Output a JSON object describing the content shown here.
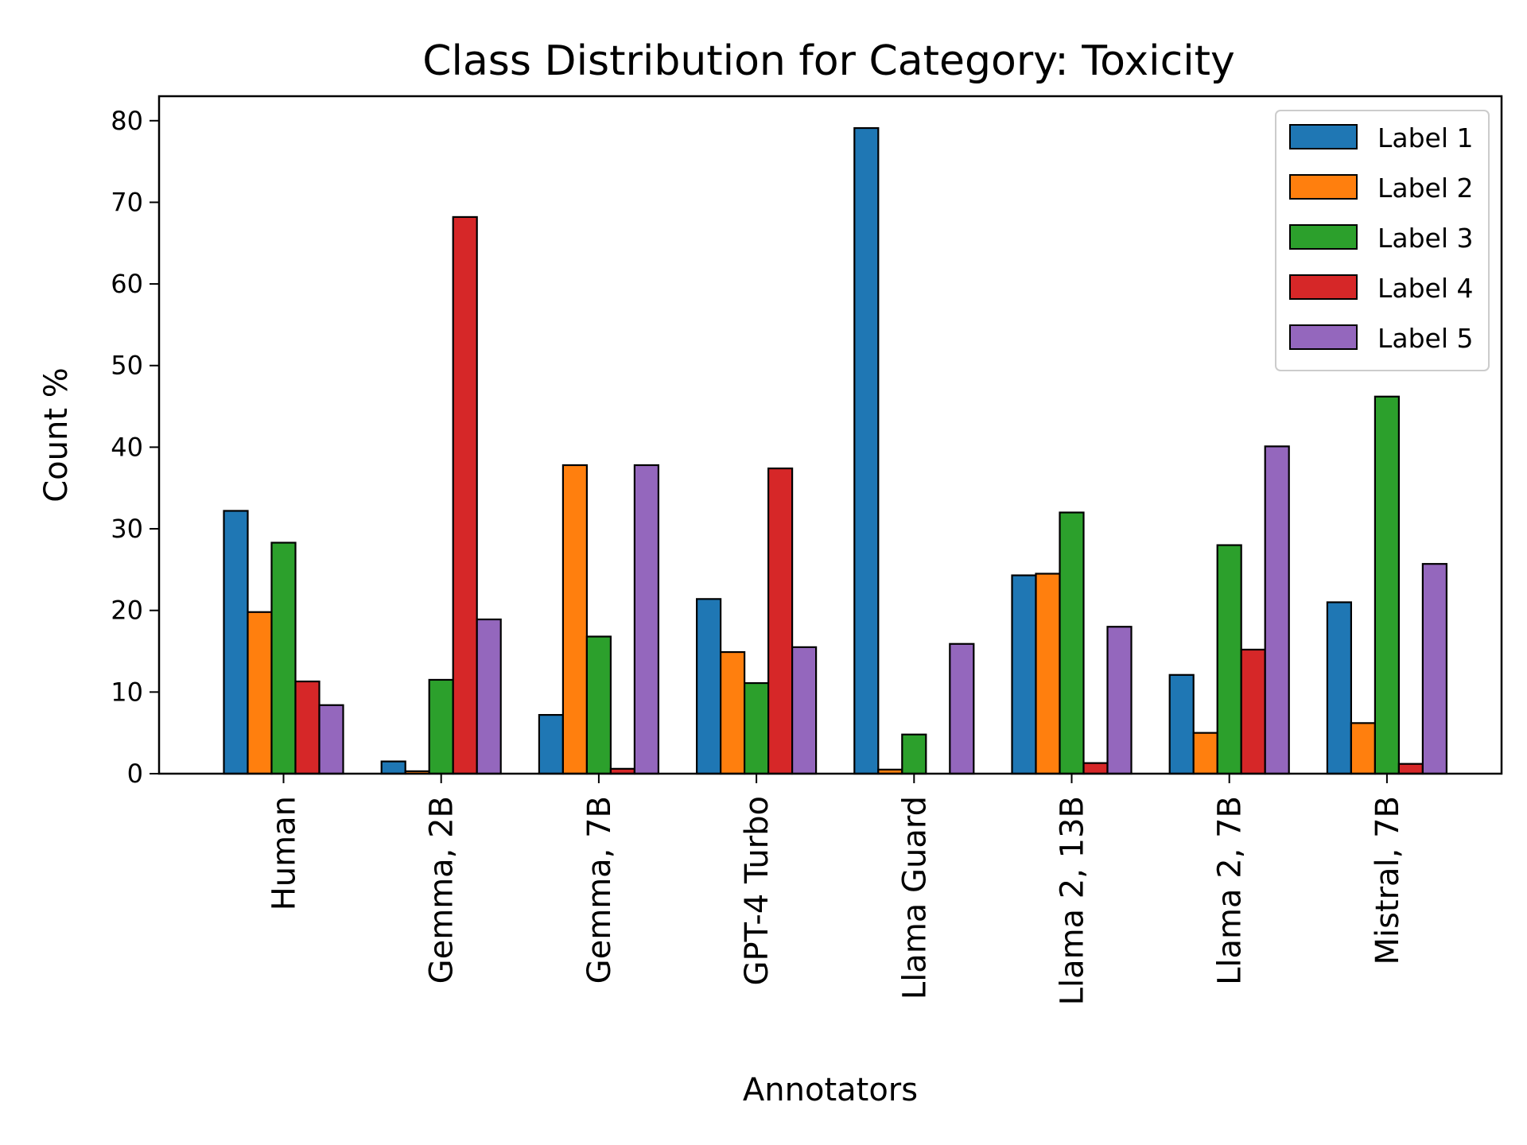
{
  "chart_data": {
    "type": "bar",
    "title": "Class Distribution for Category: Toxicity",
    "xlabel": "Annotators",
    "ylabel": "Count %",
    "ylim": [
      0,
      83
    ],
    "yticks": [
      0,
      10,
      20,
      30,
      40,
      50,
      60,
      70,
      80
    ],
    "grid": false,
    "legend_position": "top-right",
    "categories": [
      "Human",
      "Gemma, 2B",
      "Gemma, 7B",
      "GPT-4 Turbo",
      "Llama Guard",
      "Llama 2, 13B",
      "Llama 2, 7B",
      "Mistral, 7B"
    ],
    "series": [
      {
        "name": "Label 1",
        "color": "#1f77b4",
        "values": [
          32.2,
          1.5,
          7.2,
          21.4,
          79.1,
          24.3,
          12.1,
          21.0
        ]
      },
      {
        "name": "Label 2",
        "color": "#ff7f0e",
        "values": [
          19.8,
          0.3,
          37.8,
          14.9,
          0.5,
          24.5,
          5.0,
          6.2
        ]
      },
      {
        "name": "Label 3",
        "color": "#2ca02c",
        "values": [
          28.3,
          11.5,
          16.8,
          11.1,
          4.8,
          32.0,
          28.0,
          46.2
        ]
      },
      {
        "name": "Label 4",
        "color": "#d62728",
        "values": [
          11.3,
          68.2,
          0.6,
          37.4,
          0.0,
          1.3,
          15.2,
          1.2
        ]
      },
      {
        "name": "Label 5",
        "color": "#9467bd",
        "values": [
          8.4,
          18.9,
          37.8,
          15.5,
          15.9,
          18.0,
          40.1,
          25.7
        ]
      }
    ]
  }
}
